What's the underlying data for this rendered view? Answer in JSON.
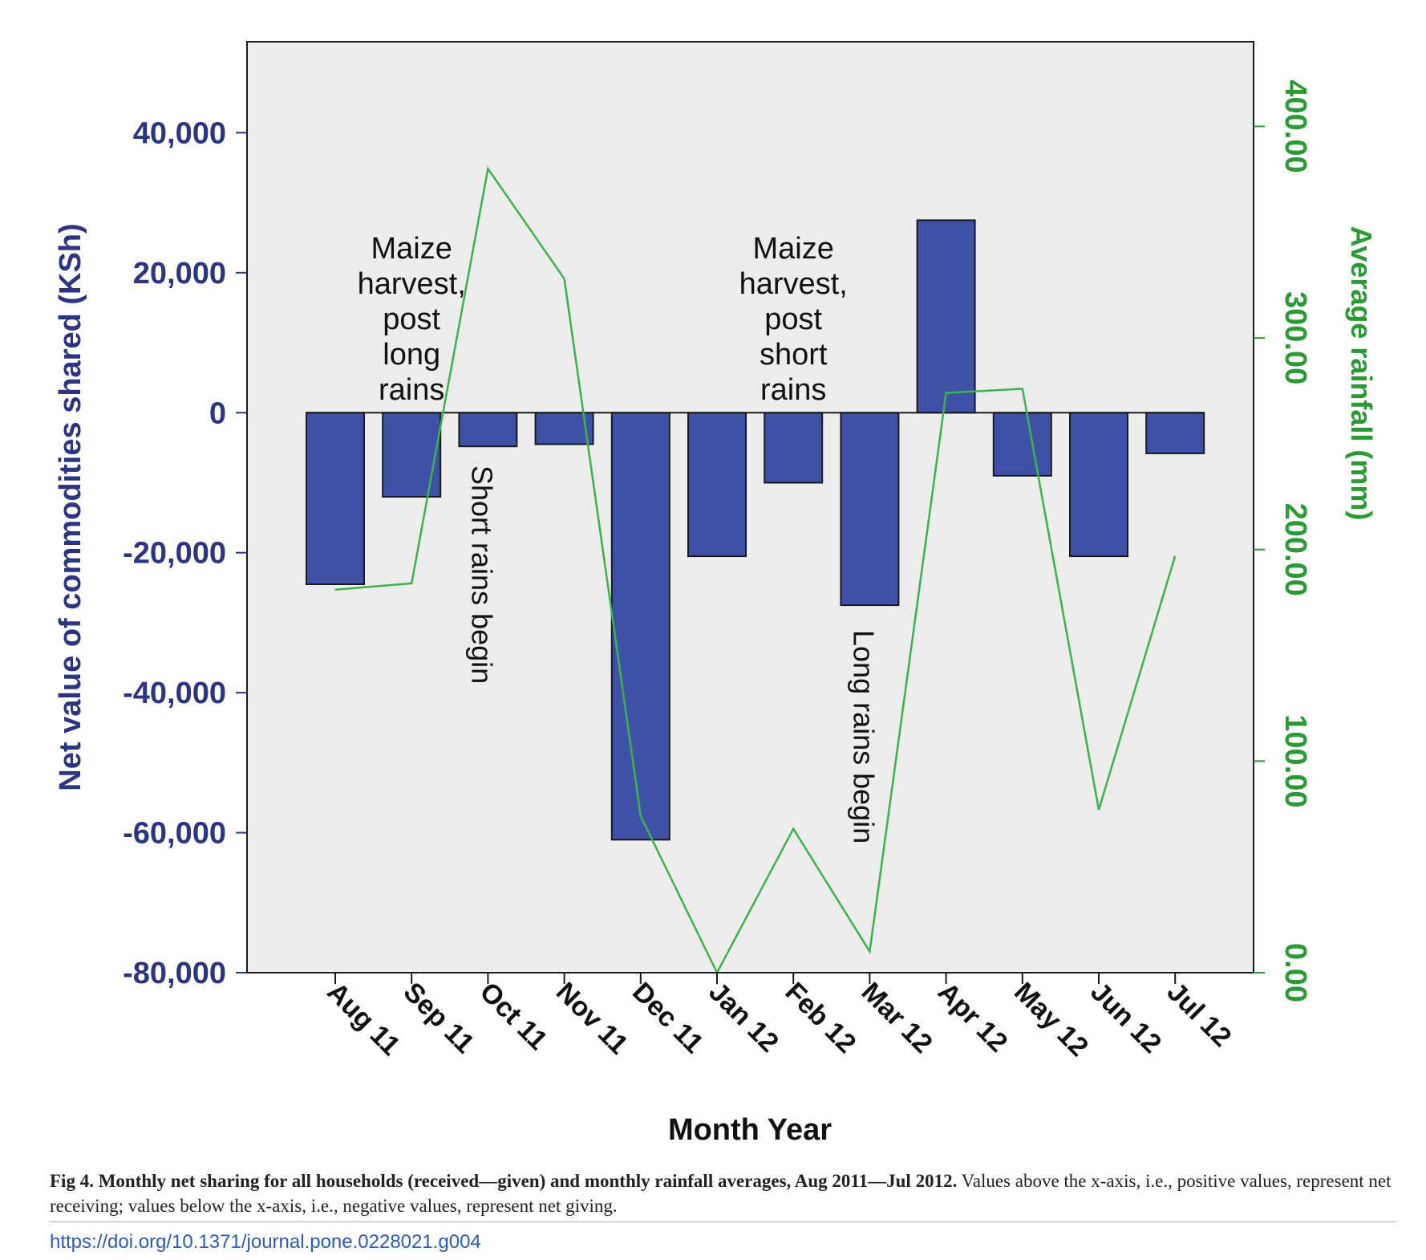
{
  "chart_data": {
    "type": "bar",
    "categories": [
      "Aug 11",
      "Sep 11",
      "Oct 11",
      "Nov 11",
      "Dec 11",
      "Jan 12",
      "Feb 12",
      "Mar 12",
      "Apr 12",
      "May 12",
      "Jun 12",
      "Jul 12"
    ],
    "series": [
      {
        "name": "Net value of commodities shared (KSh)",
        "type": "bar",
        "axis": "left",
        "values": [
          -24500,
          -12000,
          -4800,
          -4500,
          -61000,
          -20500,
          -10000,
          -27500,
          27500,
          -9000,
          -20500,
          -5800
        ]
      },
      {
        "name": "Average rainfall (mm)",
        "type": "line",
        "axis": "right",
        "values": [
          181,
          184,
          380,
          328,
          74,
          0,
          68,
          10,
          274,
          276,
          77,
          197
        ]
      }
    ],
    "xlabel": "Month Year",
    "ylabel": "Net value of commodities shared (KSh)",
    "y2label": "Average rainfall (mm)",
    "ylim": [
      -80000,
      53000
    ],
    "y2lim": [
      0,
      440
    ],
    "yticks": [
      40000,
      20000,
      0,
      -20000,
      -40000,
      -60000,
      -80000
    ],
    "ytick_labels": [
      "40,000",
      "20,000",
      "0",
      "-20,000",
      "-40,000",
      "-60,000",
      "-80,000"
    ],
    "y2ticks": [
      400,
      300,
      200,
      100,
      0
    ],
    "y2tick_labels": [
      "400.00",
      "300.00",
      "200.00",
      "100.00",
      "0.00"
    ],
    "annotations": [
      {
        "category": "Sep 11",
        "lines": [
          "Maize",
          "harvest,",
          "post",
          "long",
          "rains"
        ],
        "orientation": "horizontal"
      },
      {
        "category": "Oct 11",
        "lines": [
          "Short rains begin"
        ],
        "orientation": "vertical"
      },
      {
        "category": "Feb 12",
        "lines": [
          "Maize",
          "harvest,",
          "post",
          "short",
          "rains"
        ],
        "orientation": "horizontal"
      },
      {
        "category": "Mar 12",
        "lines": [
          "Long rains begin"
        ],
        "orientation": "vertical"
      }
    ],
    "colors": {
      "bar": "#3f51a6",
      "bar_edge": "#1a1a1a",
      "line": "#3cb34a",
      "left_axis": "#2b3580",
      "right_axis": "#2a9a34",
      "plot_bg": "#ededed"
    },
    "grid": false
  },
  "caption": {
    "label": "Fig 4.",
    "title": "Monthly net sharing for all households (received—given) and monthly rainfall averages, Aug 2011—Jul 2012.",
    "text": "Values above the x-axis, i.e., positive values, represent net receiving; values below the x-axis, i.e., negative values, represent net giving."
  },
  "doi": "https://doi.org/10.1371/journal.pone.0228021.g004"
}
